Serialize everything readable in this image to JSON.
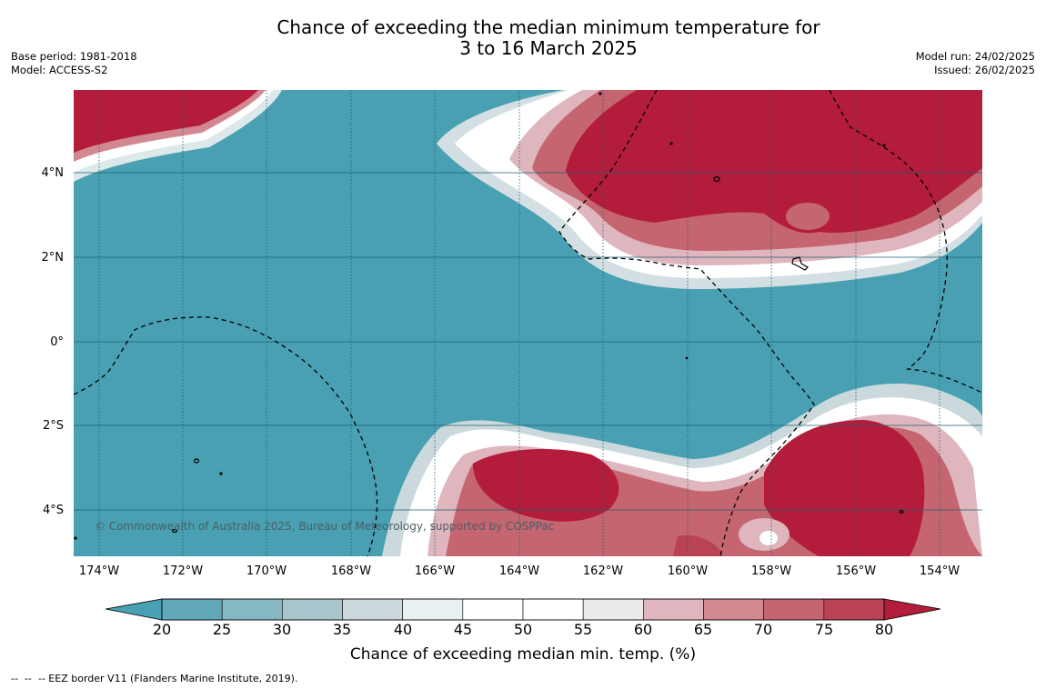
{
  "header": {
    "title_line1": "Chance of exceeding the median minimum temperature for",
    "title_line2": "3 to 16 March 2025",
    "left_meta": [
      "Base period: 1981-2018",
      "Model: ACCESS-S2"
    ],
    "right_meta": [
      "Model run: 24/02/2025",
      "Issued: 26/02/2025"
    ]
  },
  "map": {
    "lat_labels": [
      "4°N",
      "2°N",
      "0°",
      "2°S",
      "4°S"
    ],
    "lon_labels": [
      "174°W",
      "172°W",
      "170°W",
      "168°W",
      "166°W",
      "164°W",
      "162°W",
      "160°W",
      "158°W",
      "156°W",
      "154°W"
    ],
    "copyright": "© Commonwealth of Australia 2025, Bureau of Meteorology, supported by COSPPac",
    "colors": {
      "below_20": "#48a0b2",
      "above_80": "#b31c3b",
      "gridline": "#1f5e70",
      "coast": "#000000"
    }
  },
  "colorbar": {
    "tick_labels": [
      "20",
      "25",
      "30",
      "35",
      "40",
      "45",
      "50",
      "55",
      "60",
      "65",
      "70",
      "75",
      "80"
    ],
    "bin_colors": [
      "#62a8b8",
      "#86b8c4",
      "#a9c6cc",
      "#cbd9dd",
      "#e9f0f1",
      "#ffffff",
      "#ffffff",
      "#ebebeb",
      "#dfb6bd",
      "#d28891",
      "#c56570",
      "#b94253"
    ],
    "title": "Chance of exceeding median min. temp. (%)"
  },
  "footnote": "--  --  -- EEZ border V11 (Flanders Marine Institute, 2019)."
}
